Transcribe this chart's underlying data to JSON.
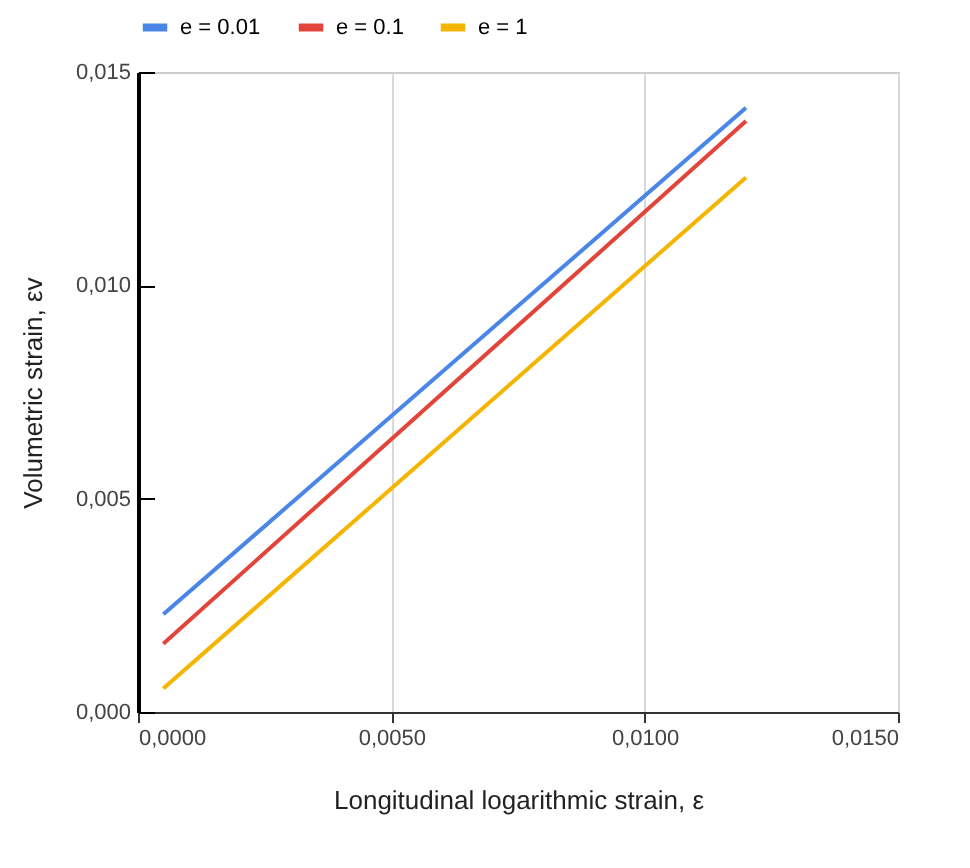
{
  "chart_data": {
    "type": "line",
    "xlabel": "Longitudinal logarithmic strain, ε",
    "ylabel": "Volumetric strain, εv",
    "x": [
      0.0005,
      0.012
    ],
    "series": [
      {
        "name": "e = 0.01",
        "color": "#4a86e8",
        "values": [
          0.00229,
          0.01416
        ]
      },
      {
        "name": "e = 0.1",
        "color": "#e2443a",
        "values": [
          0.0016,
          0.01385
        ]
      },
      {
        "name": "e = 1",
        "color": "#f4b400",
        "values": [
          0.00055,
          0.01253
        ]
      }
    ],
    "xlim": [
      0,
      0.015
    ],
    "xticks": [
      {
        "value": 0,
        "label": "0,0000"
      },
      {
        "value": 0.005,
        "label": "0,0050"
      },
      {
        "value": 0.01,
        "label": "0,0100"
      },
      {
        "value": 0.015,
        "label": "0,0150"
      }
    ],
    "ylim": [
      0,
      0.015
    ],
    "yticks": [
      {
        "value": 0,
        "label": "0,000"
      },
      {
        "value": 0.005,
        "label": "0,005"
      },
      {
        "value": 0.01,
        "label": "0,010"
      },
      {
        "value": 0.015,
        "label": "0,015"
      }
    ],
    "grid": "x",
    "legend": "top",
    "marker": "none",
    "line_style": "solid"
  }
}
